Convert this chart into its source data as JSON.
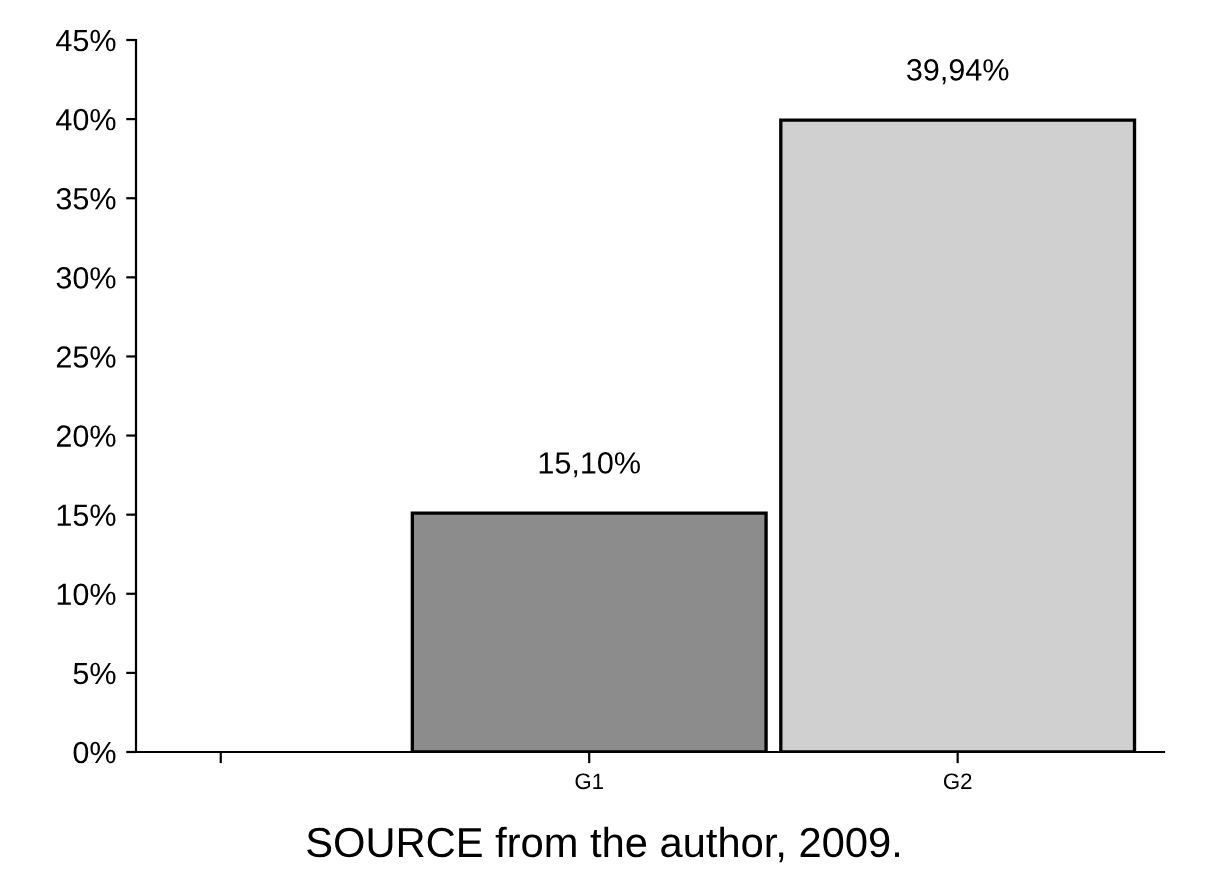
{
  "chart_data": {
    "type": "bar",
    "categories": [
      null,
      "G1",
      "G2"
    ],
    "values": [
      null,
      15.1,
      39.94
    ],
    "colors": [
      "#8c8c8c",
      "#8c8c8c",
      "#d0d0d0"
    ],
    "value_labels": [
      null,
      "15,10%",
      "39,94%"
    ],
    "ylim": [
      0,
      45
    ],
    "yticks": [
      {
        "value": 0,
        "label": "0%"
      },
      {
        "value": 5,
        "label": "5%"
      },
      {
        "value": 10,
        "label": "10%"
      },
      {
        "value": 15,
        "label": "15%"
      },
      {
        "value": 20,
        "label": "20%"
      },
      {
        "value": 25,
        "label": "25%"
      },
      {
        "value": 30,
        "label": "30%"
      },
      {
        "value": 35,
        "label": "35%"
      },
      {
        "value": 40,
        "label": "40%"
      },
      {
        "value": 45,
        "label": "45%"
      }
    ],
    "annotations": [
      "SOURCE from the author, 2009."
    ],
    "grid": false,
    "legend": false
  }
}
